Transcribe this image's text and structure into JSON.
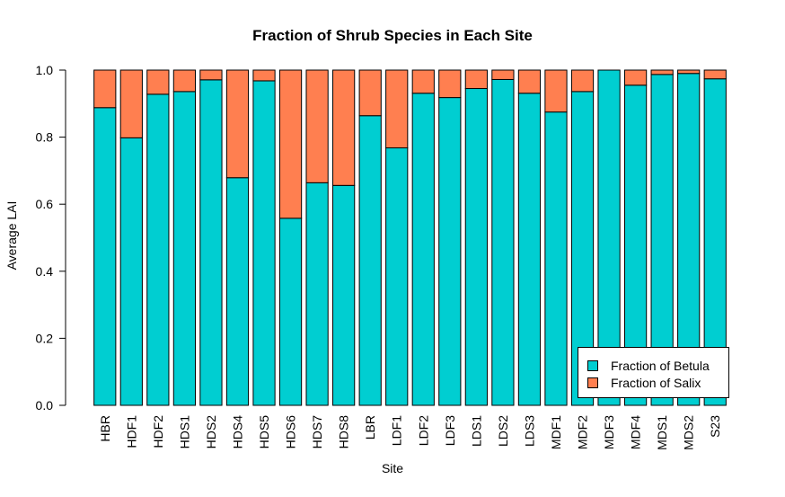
{
  "chart_data": {
    "type": "bar",
    "stacked": true,
    "title": "Fraction of Shrub Species in Each Site",
    "xlabel": "Site",
    "ylabel": "Average LAI",
    "ylim": [
      0,
      1
    ],
    "yticks": [
      "0.0",
      "0.2",
      "0.4",
      "0.6",
      "0.8",
      "1.0"
    ],
    "grid": false,
    "legend_position": "bottom-right",
    "categories": [
      "HBR",
      "HDF1",
      "HDF2",
      "HDS1",
      "HDS2",
      "HDS4",
      "HDS5",
      "HDS6",
      "HDS7",
      "HDS8",
      "LBR",
      "LDF1",
      "LDF2",
      "LDF3",
      "LDS1",
      "LDS2",
      "LDS3",
      "MDF1",
      "MDF2",
      "MDF3",
      "MDF4",
      "MDS1",
      "MDS2",
      "S23"
    ],
    "series": [
      {
        "name": "Fraction of Betula",
        "color": "#00CED1",
        "values": [
          0.888,
          0.798,
          0.928,
          0.936,
          0.971,
          0.679,
          0.968,
          0.558,
          0.664,
          0.656,
          0.864,
          0.768,
          0.931,
          0.918,
          0.945,
          0.972,
          0.931,
          0.875,
          0.936,
          1.0,
          0.955,
          0.987,
          0.99,
          0.974
        ]
      },
      {
        "name": "Fraction of Salix",
        "color": "#FF7F50",
        "values": [
          0.112,
          0.202,
          0.072,
          0.064,
          0.029,
          0.321,
          0.032,
          0.442,
          0.336,
          0.344,
          0.136,
          0.232,
          0.069,
          0.082,
          0.055,
          0.028,
          0.069,
          0.125,
          0.064,
          0.0,
          0.045,
          0.013,
          0.01,
          0.026
        ]
      }
    ]
  }
}
